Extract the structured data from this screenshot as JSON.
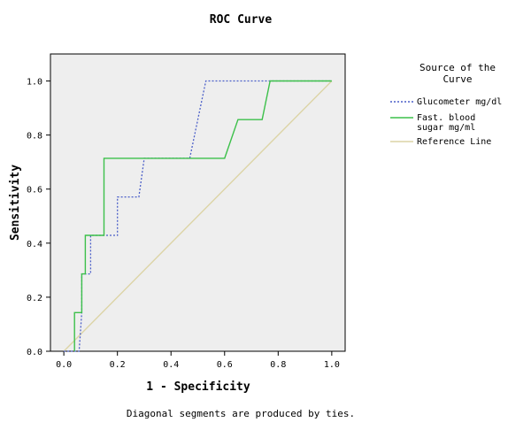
{
  "chart_data": {
    "type": "line",
    "title": "ROC Curve",
    "xlabel": "1 - Specificity",
    "ylabel": "Sensitivity",
    "xlim": [
      -0.05,
      1.05
    ],
    "ylim": [
      0,
      1.1
    ],
    "xticks": [
      "0.0",
      "0.2",
      "0.4",
      "0.6",
      "0.8",
      "1.0"
    ],
    "yticks": [
      "0.0",
      "0.2",
      "0.4",
      "0.6",
      "0.8",
      "1.0"
    ],
    "legend": {
      "title_lines": [
        "Source of the",
        "Curve"
      ],
      "position": "right"
    },
    "plot_background": "#eeeeee",
    "series": [
      {
        "name_lines": [
          "Glucometer mg/dl"
        ],
        "color": "#4a5ec8",
        "style": "dotted",
        "x": [
          0,
          0.057,
          0.067,
          0.067,
          0.1,
          0.1,
          0.2,
          0.2,
          0.28,
          0.3,
          0.3,
          0.47,
          0.53,
          0.53,
          1.0
        ],
        "y": [
          0,
          0,
          0.143,
          0.286,
          0.286,
          0.429,
          0.429,
          0.571,
          0.571,
          0.714,
          0.714,
          0.714,
          1.0,
          1.0,
          1.0
        ]
      },
      {
        "name_lines": [
          "Fast. blood",
          "sugar mg/ml"
        ],
        "color": "#3cc04a",
        "style": "solid",
        "x": [
          0.04,
          0.04,
          0.067,
          0.067,
          0.08,
          0.08,
          0.15,
          0.15,
          0.6,
          0.65,
          0.74,
          0.77,
          1.0
        ],
        "y": [
          0,
          0.143,
          0.143,
          0.286,
          0.286,
          0.429,
          0.429,
          0.714,
          0.714,
          0.857,
          0.857,
          1.0,
          1.0
        ]
      },
      {
        "name_lines": [
          "Reference Line"
        ],
        "color": "#dcd4a6",
        "style": "solid",
        "x": [
          0,
          1
        ],
        "y": [
          0,
          1
        ]
      }
    ],
    "footnote": "Diagonal segments are produced by ties."
  }
}
